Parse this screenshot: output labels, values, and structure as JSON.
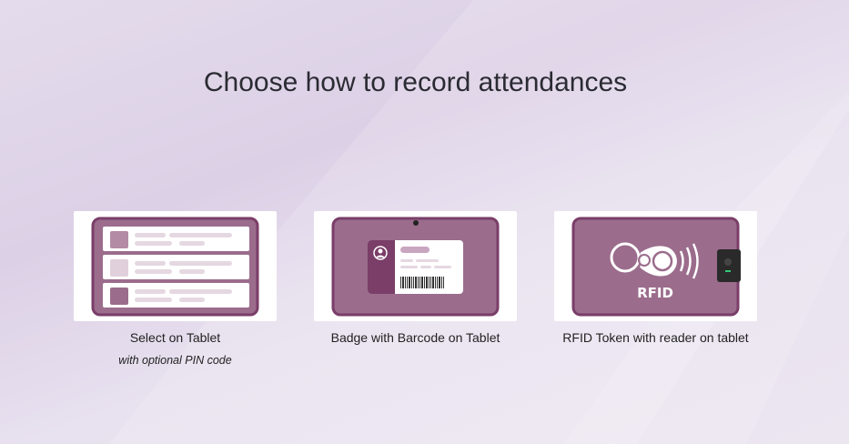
{
  "title": "Choose how to record attendances",
  "options": [
    {
      "label": "Select on Tablet",
      "sublabel": "with optional PIN code",
      "icon": "tablet-list-icon"
    },
    {
      "label": "Badge with Barcode on Tablet",
      "icon": "badge-barcode-icon"
    },
    {
      "label": "RFID Token with reader on tablet",
      "icon": "rfid-token-icon",
      "illustration_text": "RFID"
    }
  ],
  "colors": {
    "primary": "#714B67",
    "tablet_fill": "#9B6C8C",
    "accent_green": "#2ecc71"
  }
}
